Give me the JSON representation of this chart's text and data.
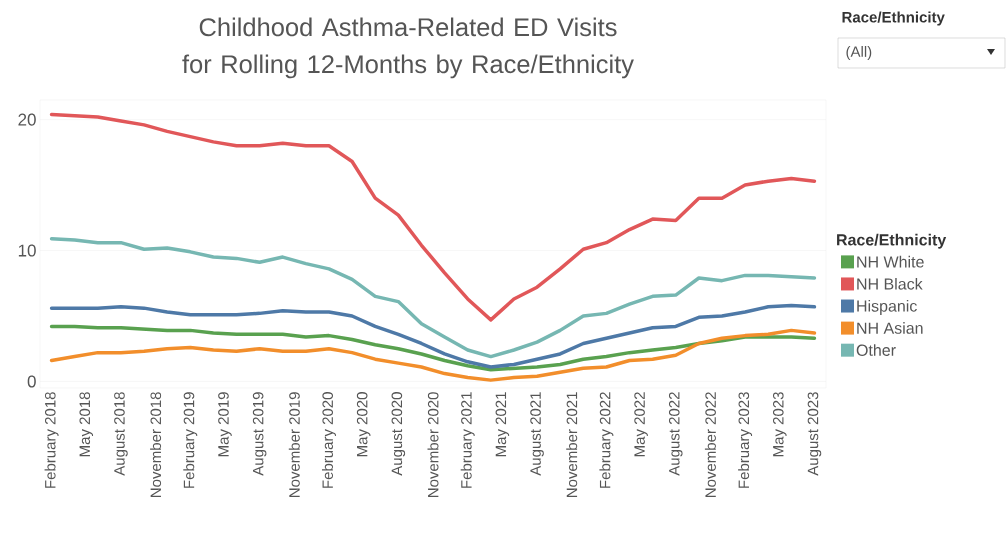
{
  "chart_data": {
    "type": "line",
    "title": "Childhood Asthma-Related ED Visits for Rolling 12-Months by Race/Ethnicity",
    "legend_title": "Race/Ethnicity",
    "annotations": [
      "Race/Ethnicity",
      "(All)"
    ],
    "x": [
      "2018-02",
      "2018-04",
      "2018-06",
      "2018-08",
      "2018-10",
      "2018-12",
      "2019-02",
      "2019-04",
      "2019-06",
      "2019-08",
      "2019-10",
      "2019-12",
      "2020-02",
      "2020-04",
      "2020-06",
      "2020-08",
      "2020-10",
      "2020-12",
      "2021-02",
      "2021-04",
      "2021-06",
      "2021-08",
      "2021-10",
      "2021-12",
      "2022-02",
      "2022-04",
      "2022-06",
      "2022-08",
      "2022-10",
      "2022-12",
      "2023-02",
      "2023-04",
      "2023-06",
      "2023-08"
    ],
    "series": [
      {
        "name": "NH White",
        "color": "#59a14f",
        "values": [
          4.2,
          4.2,
          4.1,
          4.1,
          4.0,
          3.9,
          3.9,
          3.7,
          3.6,
          3.6,
          3.6,
          3.4,
          3.5,
          3.2,
          2.8,
          2.5,
          2.1,
          1.6,
          1.2,
          0.9,
          1.0,
          1.1,
          1.3,
          1.7,
          1.9,
          2.2,
          2.4,
          2.6,
          2.9,
          3.1,
          3.4,
          3.4,
          3.4,
          3.3
        ]
      },
      {
        "name": "NH Black",
        "color": "#e15759",
        "values": [
          20.4,
          20.3,
          20.2,
          19.9,
          19.6,
          19.1,
          18.7,
          18.3,
          18.0,
          18.0,
          18.2,
          18.0,
          18.0,
          16.8,
          14.0,
          12.7,
          10.4,
          8.3,
          6.3,
          4.7,
          6.3,
          7.2,
          8.6,
          10.1,
          10.6,
          11.6,
          12.4,
          12.3,
          14.0,
          14.0,
          15.0,
          15.3,
          15.5,
          15.3
        ]
      },
      {
        "name": "Hispanic",
        "color": "#4e79a7",
        "values": [
          5.6,
          5.6,
          5.6,
          5.7,
          5.6,
          5.3,
          5.1,
          5.1,
          5.1,
          5.2,
          5.4,
          5.3,
          5.3,
          5.0,
          4.2,
          3.6,
          2.9,
          2.1,
          1.5,
          1.1,
          1.3,
          1.7,
          2.1,
          2.9,
          3.3,
          3.7,
          4.1,
          4.2,
          4.9,
          5.0,
          5.3,
          5.7,
          5.8,
          5.7
        ]
      },
      {
        "name": "NH Asian",
        "color": "#f28e2b",
        "values": [
          1.6,
          1.9,
          2.2,
          2.2,
          2.3,
          2.5,
          2.6,
          2.4,
          2.3,
          2.5,
          2.3,
          2.3,
          2.5,
          2.2,
          1.7,
          1.4,
          1.1,
          0.6,
          0.3,
          0.1,
          0.3,
          0.4,
          0.7,
          1.0,
          1.1,
          1.6,
          1.7,
          2.0,
          2.9,
          3.3,
          3.5,
          3.6,
          3.9,
          3.7
        ]
      },
      {
        "name": "Other",
        "color": "#76b7b2",
        "values": [
          10.9,
          10.8,
          10.6,
          10.6,
          10.1,
          10.2,
          9.9,
          9.5,
          9.4,
          9.1,
          9.5,
          9.0,
          8.6,
          7.8,
          6.5,
          6.1,
          4.4,
          3.4,
          2.4,
          1.9,
          2.4,
          3.0,
          3.9,
          5.0,
          5.2,
          5.9,
          6.5,
          6.6,
          7.9,
          7.7,
          8.1,
          8.1,
          8.0,
          7.9
        ]
      }
    ],
    "xlim": [
      "2018-01",
      "2023-09"
    ],
    "xticks": [
      {
        "value": "2018-02",
        "label": "February 2018"
      },
      {
        "value": "2018-05",
        "label": "May 2018"
      },
      {
        "value": "2018-08",
        "label": "August 2018"
      },
      {
        "value": "2018-11",
        "label": "November 2018"
      },
      {
        "value": "2019-02",
        "label": "February 2019"
      },
      {
        "value": "2019-05",
        "label": "May 2019"
      },
      {
        "value": "2019-08",
        "label": "August 2019"
      },
      {
        "value": "2019-11",
        "label": "November 2019"
      },
      {
        "value": "2020-02",
        "label": "February 2020"
      },
      {
        "value": "2020-05",
        "label": "May 2020"
      },
      {
        "value": "2020-08",
        "label": "August 2020"
      },
      {
        "value": "2020-11",
        "label": "November 2020"
      },
      {
        "value": "2021-02",
        "label": "February 2021"
      },
      {
        "value": "2021-05",
        "label": "May 2021"
      },
      {
        "value": "2021-08",
        "label": "August 2021"
      },
      {
        "value": "2021-11",
        "label": "November 2021"
      },
      {
        "value": "2022-02",
        "label": "February 2022"
      },
      {
        "value": "2022-05",
        "label": "May 2022"
      },
      {
        "value": "2022-08",
        "label": "August 2022"
      },
      {
        "value": "2022-11",
        "label": "November 2022"
      },
      {
        "value": "2023-02",
        "label": "February 2023"
      },
      {
        "value": "2023-05",
        "label": "May 2023"
      },
      {
        "value": "2023-08",
        "label": "August 2023"
      }
    ],
    "ylim": [
      -0.5,
      21.5
    ],
    "yticks": [
      0,
      10,
      20
    ],
    "grid": "y",
    "legend": "right",
    "marker": "none",
    "line_style": "solid"
  }
}
